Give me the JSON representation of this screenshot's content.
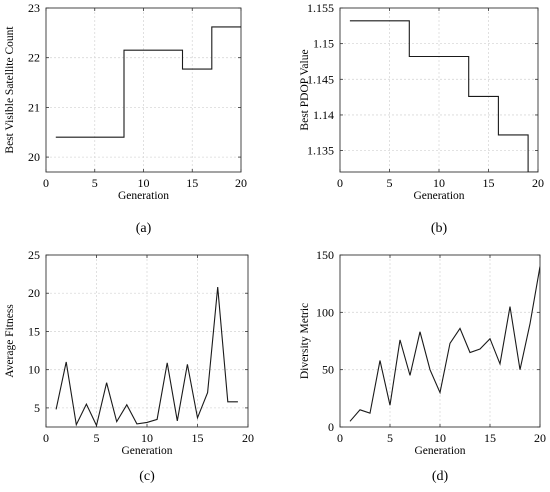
{
  "chart_data": [
    {
      "type": "line",
      "caption": "(a)",
      "xlabel": "Generation",
      "ylabel": "Best Visible Satellite Count",
      "xlim": [
        0,
        20
      ],
      "ylim": [
        19.7,
        23
      ],
      "xticks": [
        0,
        5,
        10,
        15,
        20
      ],
      "yticks": [
        20,
        21,
        22,
        23
      ],
      "grid": true,
      "step": true,
      "series": [
        {
          "x": [
            1,
            2,
            3,
            4,
            5,
            6,
            7,
            8,
            9,
            10,
            11,
            12,
            13,
            14,
            15,
            16,
            17,
            18,
            19,
            20
          ],
          "y": [
            20.4,
            20.4,
            20.4,
            20.4,
            20.4,
            20.4,
            20.4,
            22.15,
            22.15,
            22.15,
            22.15,
            22.15,
            22.15,
            21.77,
            21.77,
            21.77,
            22.62,
            22.62,
            22.62,
            22.62
          ]
        }
      ]
    },
    {
      "type": "line",
      "caption": "(b)",
      "xlabel": "Generation",
      "ylabel": "Best PDOP Value",
      "xlim": [
        0,
        20
      ],
      "ylim": [
        1.132,
        1.155
      ],
      "xticks": [
        0,
        5,
        10,
        15,
        20
      ],
      "yticks": [
        1.135,
        1.14,
        1.145,
        1.15,
        1.155
      ],
      "ytick_labels": [
        "1.135",
        "1.14",
        "1.145",
        "1.15",
        "1.155"
      ],
      "grid": true,
      "step": true,
      "series": [
        {
          "x": [
            1,
            2,
            3,
            4,
            5,
            6,
            7,
            8,
            9,
            10,
            11,
            12,
            13,
            14,
            15,
            16,
            17,
            18,
            19,
            20
          ],
          "y": [
            1.1532,
            1.1532,
            1.1532,
            1.1532,
            1.1532,
            1.1532,
            1.1482,
            1.1482,
            1.1482,
            1.1482,
            1.1482,
            1.1482,
            1.1426,
            1.1426,
            1.1426,
            1.1372,
            1.1372,
            1.1372,
            1.132,
            1.132
          ]
        }
      ]
    },
    {
      "type": "line",
      "caption": "(c)",
      "xlabel": "Generation",
      "ylabel": "Average Fitness",
      "xlim": [
        0,
        20
      ],
      "ylim": [
        2.5,
        25
      ],
      "xticks": [
        0,
        5,
        10,
        15,
        20
      ],
      "yticks": [
        5,
        10,
        15,
        20,
        25
      ],
      "grid": true,
      "step": false,
      "series": [
        {
          "x": [
            1,
            2,
            3,
            4,
            5,
            6,
            7,
            8,
            9,
            10,
            11,
            12,
            13,
            14,
            15,
            16,
            17,
            18,
            19
          ],
          "y": [
            4.8,
            11,
            2.8,
            5.5,
            2.7,
            8.3,
            3.2,
            5.4,
            2.9,
            3.1,
            3.5,
            10.9,
            3.3,
            10.7,
            3.7,
            7,
            20.8,
            5.8,
            5.8
          ]
        }
      ]
    },
    {
      "type": "line",
      "caption": "(d)",
      "xlabel": "Generation",
      "ylabel": "Diversity Metric",
      "xlim": [
        0,
        20
      ],
      "ylim": [
        0,
        150
      ],
      "xticks": [
        0,
        5,
        10,
        15,
        20
      ],
      "yticks": [
        0,
        50,
        100,
        150
      ],
      "grid": true,
      "step": false,
      "series": [
        {
          "x": [
            1,
            2,
            3,
            4,
            5,
            6,
            7,
            8,
            9,
            10,
            11,
            12,
            13,
            14,
            15,
            16,
            17,
            18,
            19,
            20
          ],
          "y": [
            5,
            15,
            12,
            58,
            19,
            76,
            45,
            83,
            50,
            30,
            73,
            86,
            65,
            68,
            77,
            55,
            105,
            50,
            90,
            140
          ]
        }
      ]
    }
  ]
}
